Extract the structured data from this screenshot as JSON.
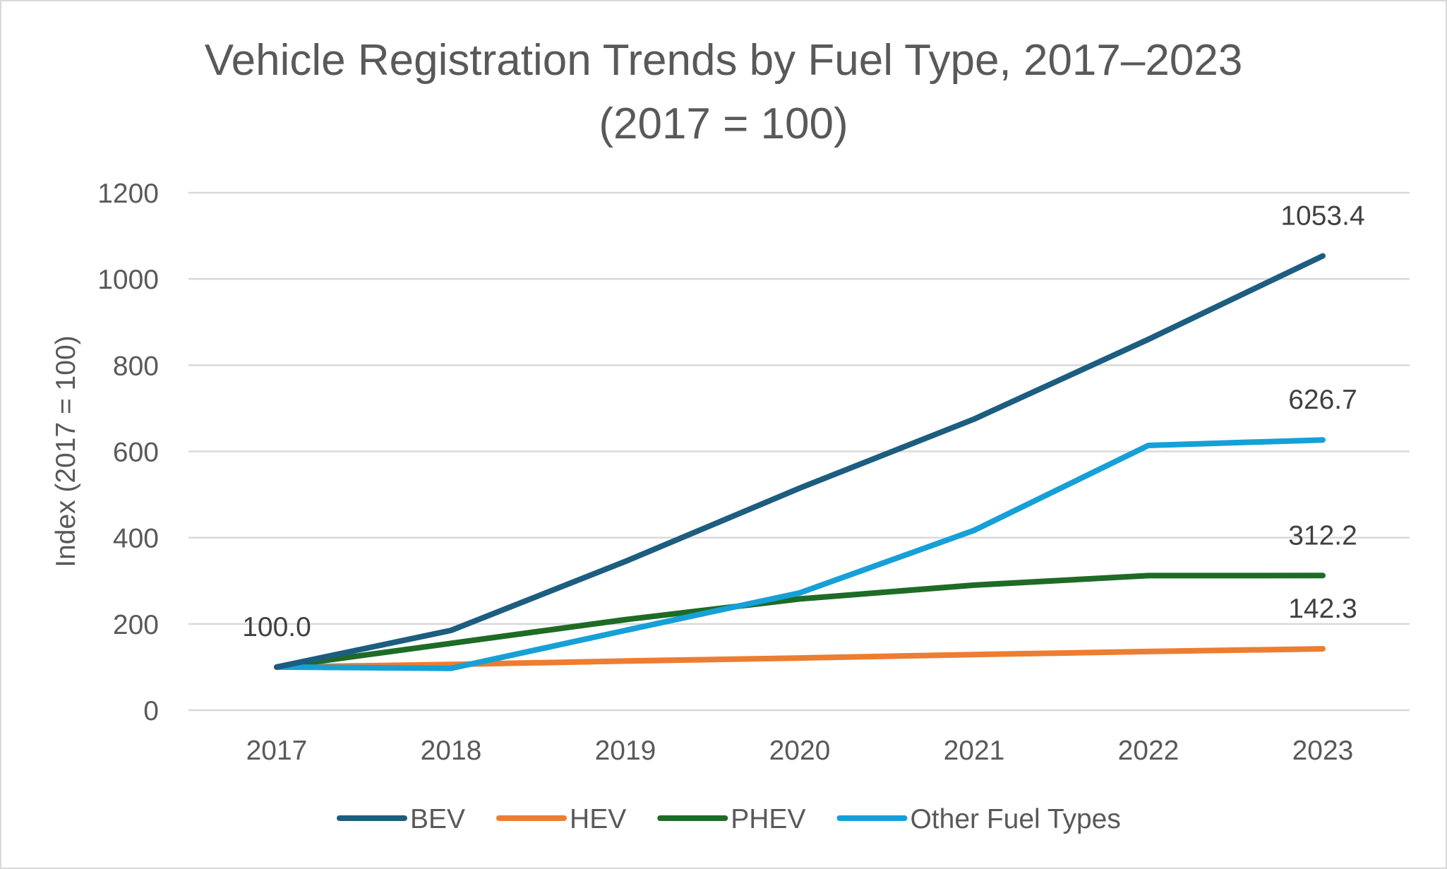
{
  "chart_data": {
    "type": "line",
    "title_lines": [
      "Vehicle Registration Trends by Fuel Type, 2017–2023",
      "(2017 = 100)"
    ],
    "xlabel": "",
    "ylabel": "Index (2017 = 100)",
    "categories": [
      "2017",
      "2018",
      "2019",
      "2020",
      "2021",
      "2022",
      "2023"
    ],
    "ylim": [
      0,
      1200
    ],
    "yticks": [
      0,
      200,
      400,
      600,
      800,
      1000,
      1200
    ],
    "grid": true,
    "legend_position": "bottom",
    "series": [
      {
        "name": "BEV",
        "color": "#1c5d80",
        "values": [
          100,
          185,
          345,
          515,
          675,
          860,
          1053.4
        ]
      },
      {
        "name": "HEV",
        "color": "#ed7d31",
        "values": [
          100,
          106,
          114,
          121,
          129,
          136,
          142.3
        ]
      },
      {
        "name": "PHEV",
        "color": "#1e6b26",
        "values": [
          100,
          155,
          210,
          258,
          290,
          312,
          312.2
        ]
      },
      {
        "name": "Other Fuel Types",
        "color": "#16a0d8",
        "values": [
          100,
          97,
          185,
          272,
          417,
          614,
          626.7
        ]
      }
    ],
    "data_labels": [
      {
        "series": "BEV",
        "index": 0,
        "text": "100.0"
      },
      {
        "series": "BEV",
        "index": 6,
        "text": "1053.4"
      },
      {
        "series": "Other Fuel Types",
        "index": 6,
        "text": "626.7"
      },
      {
        "series": "PHEV",
        "index": 6,
        "text": "312.2"
      },
      {
        "series": "HEV",
        "index": 6,
        "text": "142.3"
      }
    ]
  }
}
